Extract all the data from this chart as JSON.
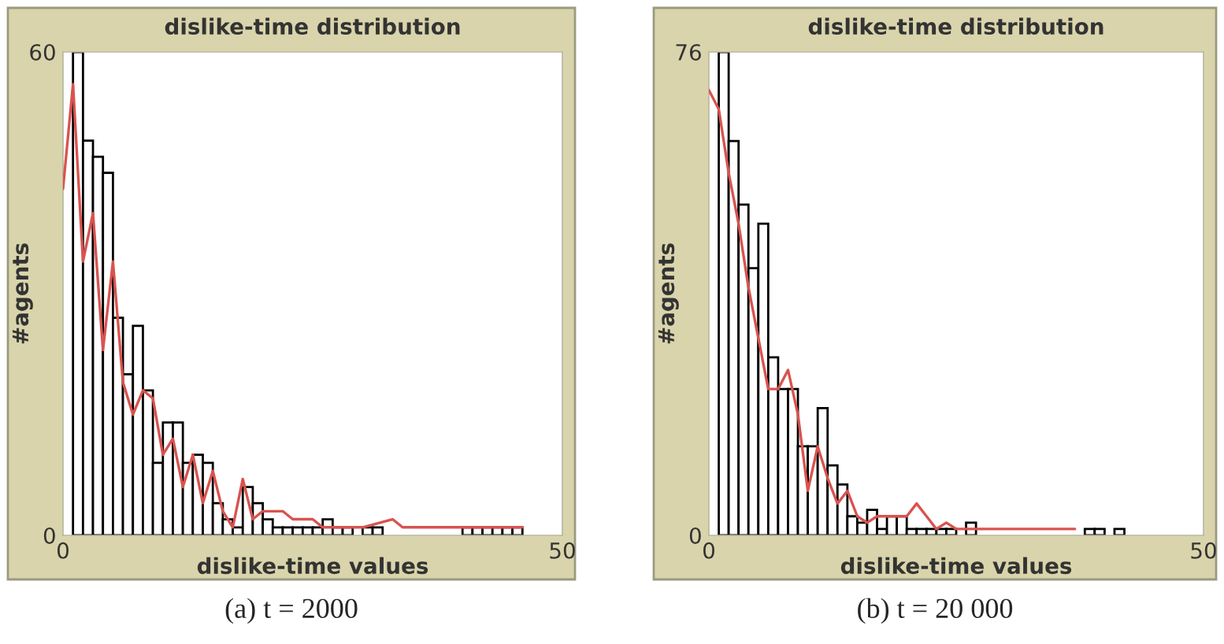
{
  "chart_data": [
    {
      "type": "histogram",
      "title": "dislike-time distribution",
      "xlabel": "dislike-time values",
      "ylabel": "#agents",
      "bins": [
        1,
        2,
        3,
        4,
        5,
        6,
        7,
        8,
        9,
        10,
        11,
        12,
        13,
        14,
        15,
        16,
        17,
        18,
        19,
        20,
        21,
        22,
        23,
        24,
        25,
        26,
        27,
        28,
        29,
        30,
        31,
        32,
        33,
        34,
        35,
        36,
        37,
        38,
        39,
        40,
        41,
        42,
        43,
        44,
        45,
        46
      ],
      "values": [
        60,
        49,
        47,
        45,
        27,
        20,
        26,
        18,
        9,
        14,
        14,
        9,
        10,
        9,
        4,
        2,
        1,
        6,
        4,
        2,
        1,
        1,
        1,
        1,
        1,
        2,
        1,
        1,
        0,
        1,
        1,
        0,
        0,
        0,
        0,
        0,
        0,
        0,
        0,
        1,
        1,
        1,
        1,
        1,
        1
      ],
      "color": "#ffffff",
      "series": [
        {
          "type": "line",
          "color": "#d9534f",
          "x": [
            0,
            1,
            2,
            3,
            4,
            5,
            6,
            7,
            8,
            9,
            10,
            11,
            12,
            13,
            14,
            15,
            16,
            17,
            18,
            19,
            20,
            21,
            22,
            23,
            24,
            25,
            26,
            30,
            33,
            34,
            36,
            46
          ],
          "values": [
            43,
            56,
            34,
            40,
            23,
            34,
            19,
            15,
            18,
            17,
            10,
            12,
            6,
            10,
            4,
            8,
            3,
            1,
            7,
            2,
            3,
            3,
            3,
            2,
            2,
            2,
            1,
            1,
            2,
            1,
            1,
            1
          ]
        }
      ],
      "xlim": [
        0,
        50
      ],
      "xticks": [
        0,
        50
      ],
      "ylim": [
        0,
        60
      ],
      "yticks": [
        0,
        60
      ],
      "annotations": [
        "(a) t = 2000"
      ]
    },
    {
      "type": "histogram",
      "title": "dislike-time distribution",
      "xlabel": "dislike-time values",
      "ylabel": "#agents",
      "bins": [
        1,
        2,
        3,
        4,
        5,
        6,
        7,
        8,
        9,
        10,
        11,
        12,
        13,
        14,
        15,
        16,
        17,
        18,
        19,
        20,
        21,
        22,
        23,
        24,
        25,
        26,
        27,
        28,
        29,
        30,
        31,
        32,
        33,
        34,
        35,
        36,
        37,
        38,
        39,
        40,
        41,
        42
      ],
      "values": [
        76,
        62,
        52,
        42,
        49,
        28,
        23,
        23,
        14,
        14,
        20,
        11,
        8,
        3,
        2,
        4,
        1,
        3,
        3,
        1,
        1,
        1,
        1,
        1,
        null,
        2,
        null,
        null,
        null,
        null,
        null,
        null,
        null,
        null,
        null,
        null,
        null,
        1,
        1,
        0,
        1
      ],
      "color": "#ffffff",
      "series": [
        {
          "type": "line",
          "color": "#d9534f",
          "x": [
            0,
            1,
            2,
            3,
            4,
            5,
            6,
            7,
            8,
            9,
            10,
            11,
            12,
            13,
            14,
            15,
            16,
            17,
            18,
            19,
            20,
            21,
            22,
            23,
            24,
            25,
            26,
            37
          ],
          "values": [
            70,
            67,
            57,
            49,
            39,
            31,
            23,
            23,
            26,
            19,
            7,
            14,
            9,
            5,
            7,
            3,
            2,
            3,
            3,
            3,
            3,
            5,
            3,
            1,
            2,
            1,
            1,
            1
          ]
        }
      ],
      "xlim": [
        0,
        50
      ],
      "xticks": [
        0,
        50
      ],
      "ylim": [
        0,
        76
      ],
      "yticks": [
        0,
        76
      ],
      "annotations": [
        "(b) t = 20 000"
      ]
    }
  ]
}
